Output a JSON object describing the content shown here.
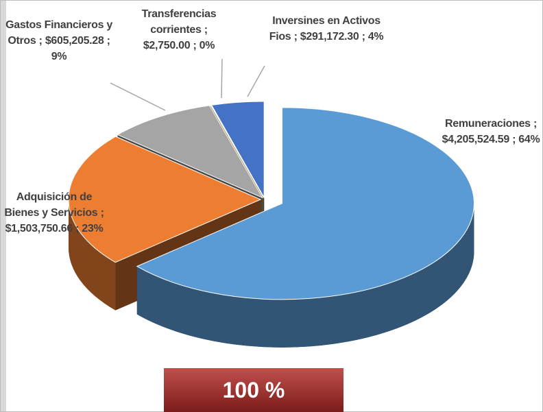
{
  "chart_data": {
    "type": "pie",
    "categories": [
      "Remuneraciones",
      "Adquisición de Bienes y Servicios",
      "Gastos Financieros y Otros",
      "Transferencias corrientes",
      "Inversines en Activos Fios"
    ],
    "values": [
      4205524.59,
      1503750.66,
      605205.28,
      2750.0,
      291172.3
    ],
    "value_labels": [
      "; $4,205,524.59 ; 64%",
      "; $1,503,750.66 ; 23%",
      "; $605,205.28 ; 9%",
      "; $2,750.00 ; 0%",
      "; $291,172.30 ; 4%"
    ],
    "colors": [
      "#5b9bd5",
      "#ed7d31",
      "#a5a5a5",
      "#ffc000",
      "#4472c4"
    ],
    "annotation": "100 %"
  }
}
